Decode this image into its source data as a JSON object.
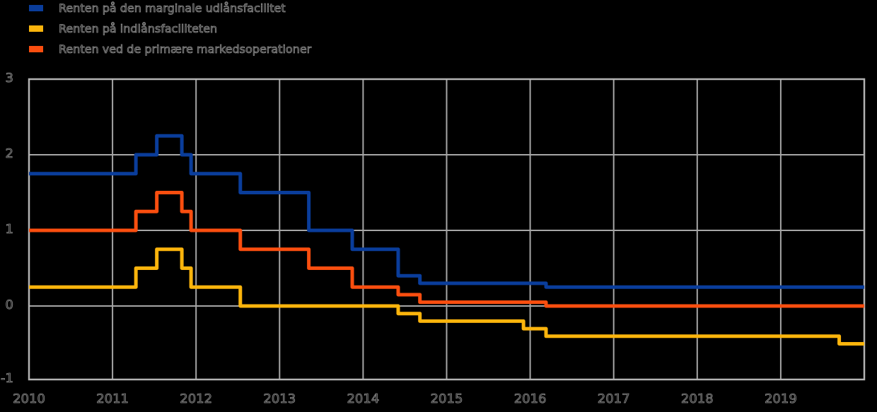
{
  "page": {
    "background": "#000000",
    "grid_color": "#a6a6a6",
    "text_outline_color": "#8f8f8f"
  },
  "legend": {
    "position": "top-left",
    "items": [
      {
        "key": "marginal-lending-rate",
        "label": "Renten på den marginale udlånsfacilitet",
        "color": "#0a3d9b"
      },
      {
        "key": "deposit-rate",
        "label": "Renten på indlånsfaciliteten",
        "color": "#fbb40c"
      },
      {
        "key": "main-refinancing-rate",
        "label": "Renten ved de primære markedsoperationer",
        "color": "#fa4e0f"
      }
    ]
  },
  "chart_data": {
    "type": "line",
    "step": true,
    "title": "",
    "xlabel": "",
    "ylabel": "",
    "grid": true,
    "legend_position": "top-left",
    "x_range": [
      2010,
      2020
    ],
    "y_range": [
      -1,
      3
    ],
    "x_ticks": [
      "2010",
      "2011",
      "2012",
      "2013",
      "2014",
      "2015",
      "2016",
      "2017",
      "2018",
      "2019"
    ],
    "x_tick_values": [
      2010,
      2011,
      2012,
      2013,
      2014,
      2015,
      2016,
      2017,
      2018,
      2019
    ],
    "y_ticks": [
      "3",
      "2",
      "1",
      "0",
      "-1"
    ],
    "y_tick_values": [
      3,
      2,
      1,
      0,
      -1
    ],
    "series": [
      {
        "key": "marginal-lending-rate",
        "name": "Renten på den marginale udlånsfacilitet",
        "color": "#0a3d9b",
        "points": [
          [
            2010.0,
            1.75
          ],
          [
            2011.28,
            2.0
          ],
          [
            2011.53,
            2.25
          ],
          [
            2011.83,
            2.0
          ],
          [
            2011.94,
            1.75
          ],
          [
            2012.53,
            1.5
          ],
          [
            2013.35,
            1.0
          ],
          [
            2013.87,
            0.75
          ],
          [
            2014.42,
            0.4
          ],
          [
            2014.68,
            0.3
          ],
          [
            2016.19,
            0.25
          ],
          [
            2020.0,
            0.25
          ]
        ]
      },
      {
        "key": "deposit-rate",
        "name": "Renten på indlånsfaciliteten",
        "color": "#fbb40c",
        "points": [
          [
            2010.0,
            0.25
          ],
          [
            2011.28,
            0.5
          ],
          [
            2011.53,
            0.75
          ],
          [
            2011.83,
            0.5
          ],
          [
            2011.94,
            0.25
          ],
          [
            2012.53,
            0.0
          ],
          [
            2014.42,
            -0.1
          ],
          [
            2014.68,
            -0.2
          ],
          [
            2015.92,
            -0.3
          ],
          [
            2016.19,
            -0.4
          ],
          [
            2019.7,
            -0.5
          ],
          [
            2020.0,
            -0.5
          ]
        ]
      },
      {
        "key": "main-refinancing-rate",
        "name": "Renten ved de primære markedsoperationer",
        "color": "#fa4e0f",
        "points": [
          [
            2010.0,
            1.0
          ],
          [
            2011.28,
            1.25
          ],
          [
            2011.53,
            1.5
          ],
          [
            2011.83,
            1.25
          ],
          [
            2011.94,
            1.0
          ],
          [
            2012.53,
            0.75
          ],
          [
            2013.35,
            0.5
          ],
          [
            2013.87,
            0.25
          ],
          [
            2014.42,
            0.15
          ],
          [
            2014.68,
            0.05
          ],
          [
            2016.19,
            0.0
          ],
          [
            2020.0,
            0.0
          ]
        ]
      }
    ]
  }
}
